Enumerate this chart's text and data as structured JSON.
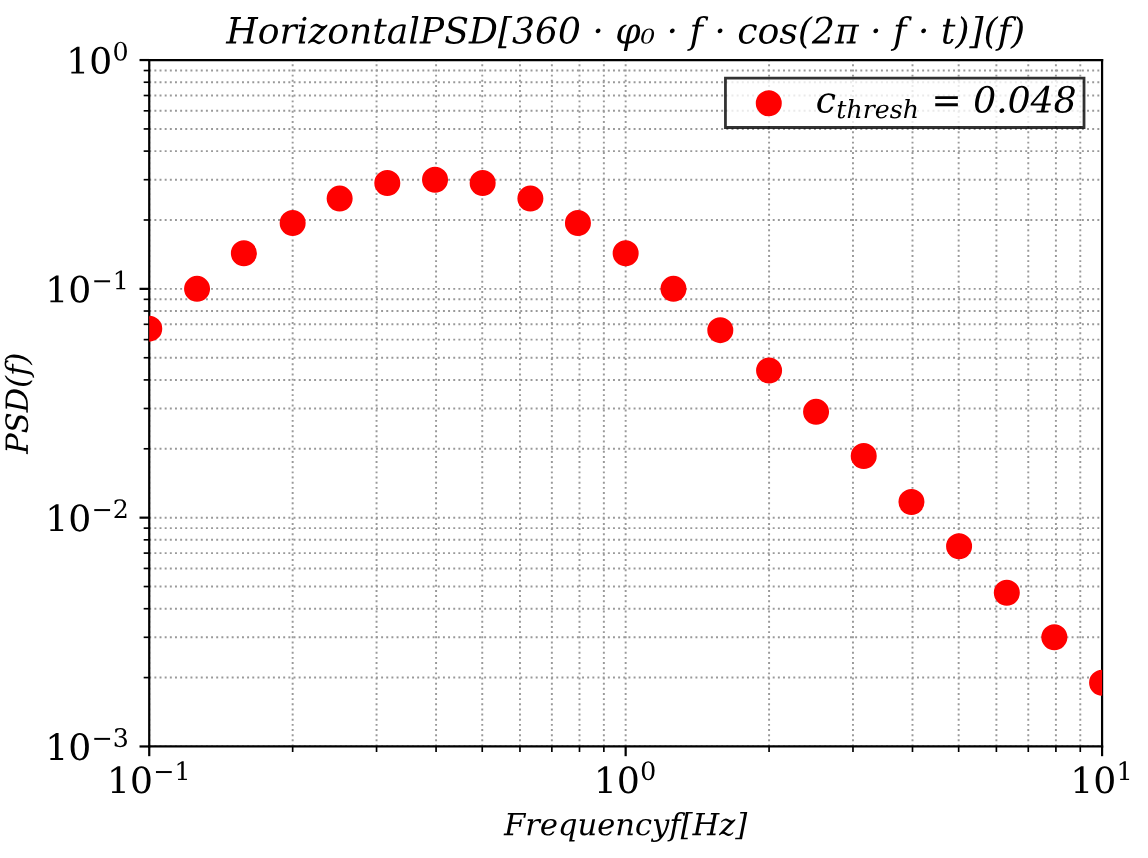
{
  "chart_data": {
    "type": "scatter",
    "title": "HorizontalPSD[360 · φ₀ · f · cos(2π · f · t)](f)",
    "xlabel": "Frequencyf[Hz]",
    "ylabel": "PSD(f)",
    "x": [
      0.1,
      0.126,
      0.158,
      0.2,
      0.251,
      0.316,
      0.398,
      0.501,
      0.631,
      0.794,
      1,
      1.26,
      1.58,
      2,
      2.51,
      3.16,
      3.98,
      5.01,
      6.31,
      7.94,
      10
    ],
    "series": [
      {
        "name": "c$_{thresh}$ = 0.048",
        "color": "#ff0000",
        "values": [
          0.067,
          0.1,
          0.143,
          0.194,
          0.248,
          0.29,
          0.3,
          0.29,
          0.248,
          0.194,
          0.143,
          0.1,
          0.066,
          0.044,
          0.029,
          0.0186,
          0.0117,
          0.0075,
          0.0047,
          0.003,
          0.0019
        ]
      }
    ],
    "log": "xy",
    "xlim": [
      0.1,
      10
    ],
    "ylim": [
      0.001,
      1
    ],
    "xticks": [
      {
        "value": 0.1,
        "label": "10$^{−1}$"
      },
      {
        "value": 1,
        "label": "10$^{0}$"
      },
      {
        "value": 10,
        "label": "10$^{1}$"
      }
    ],
    "yticks": [
      {
        "value": 0.001,
        "label": "10$^{−3}$"
      },
      {
        "value": 0.01,
        "label": "10$^{−2}$"
      },
      {
        "value": 0.1,
        "label": "10$^{−1}$"
      },
      {
        "value": 1,
        "label": "10$^{0}$"
      }
    ],
    "grid": true,
    "legend": "top right",
    "marker": "circle"
  }
}
